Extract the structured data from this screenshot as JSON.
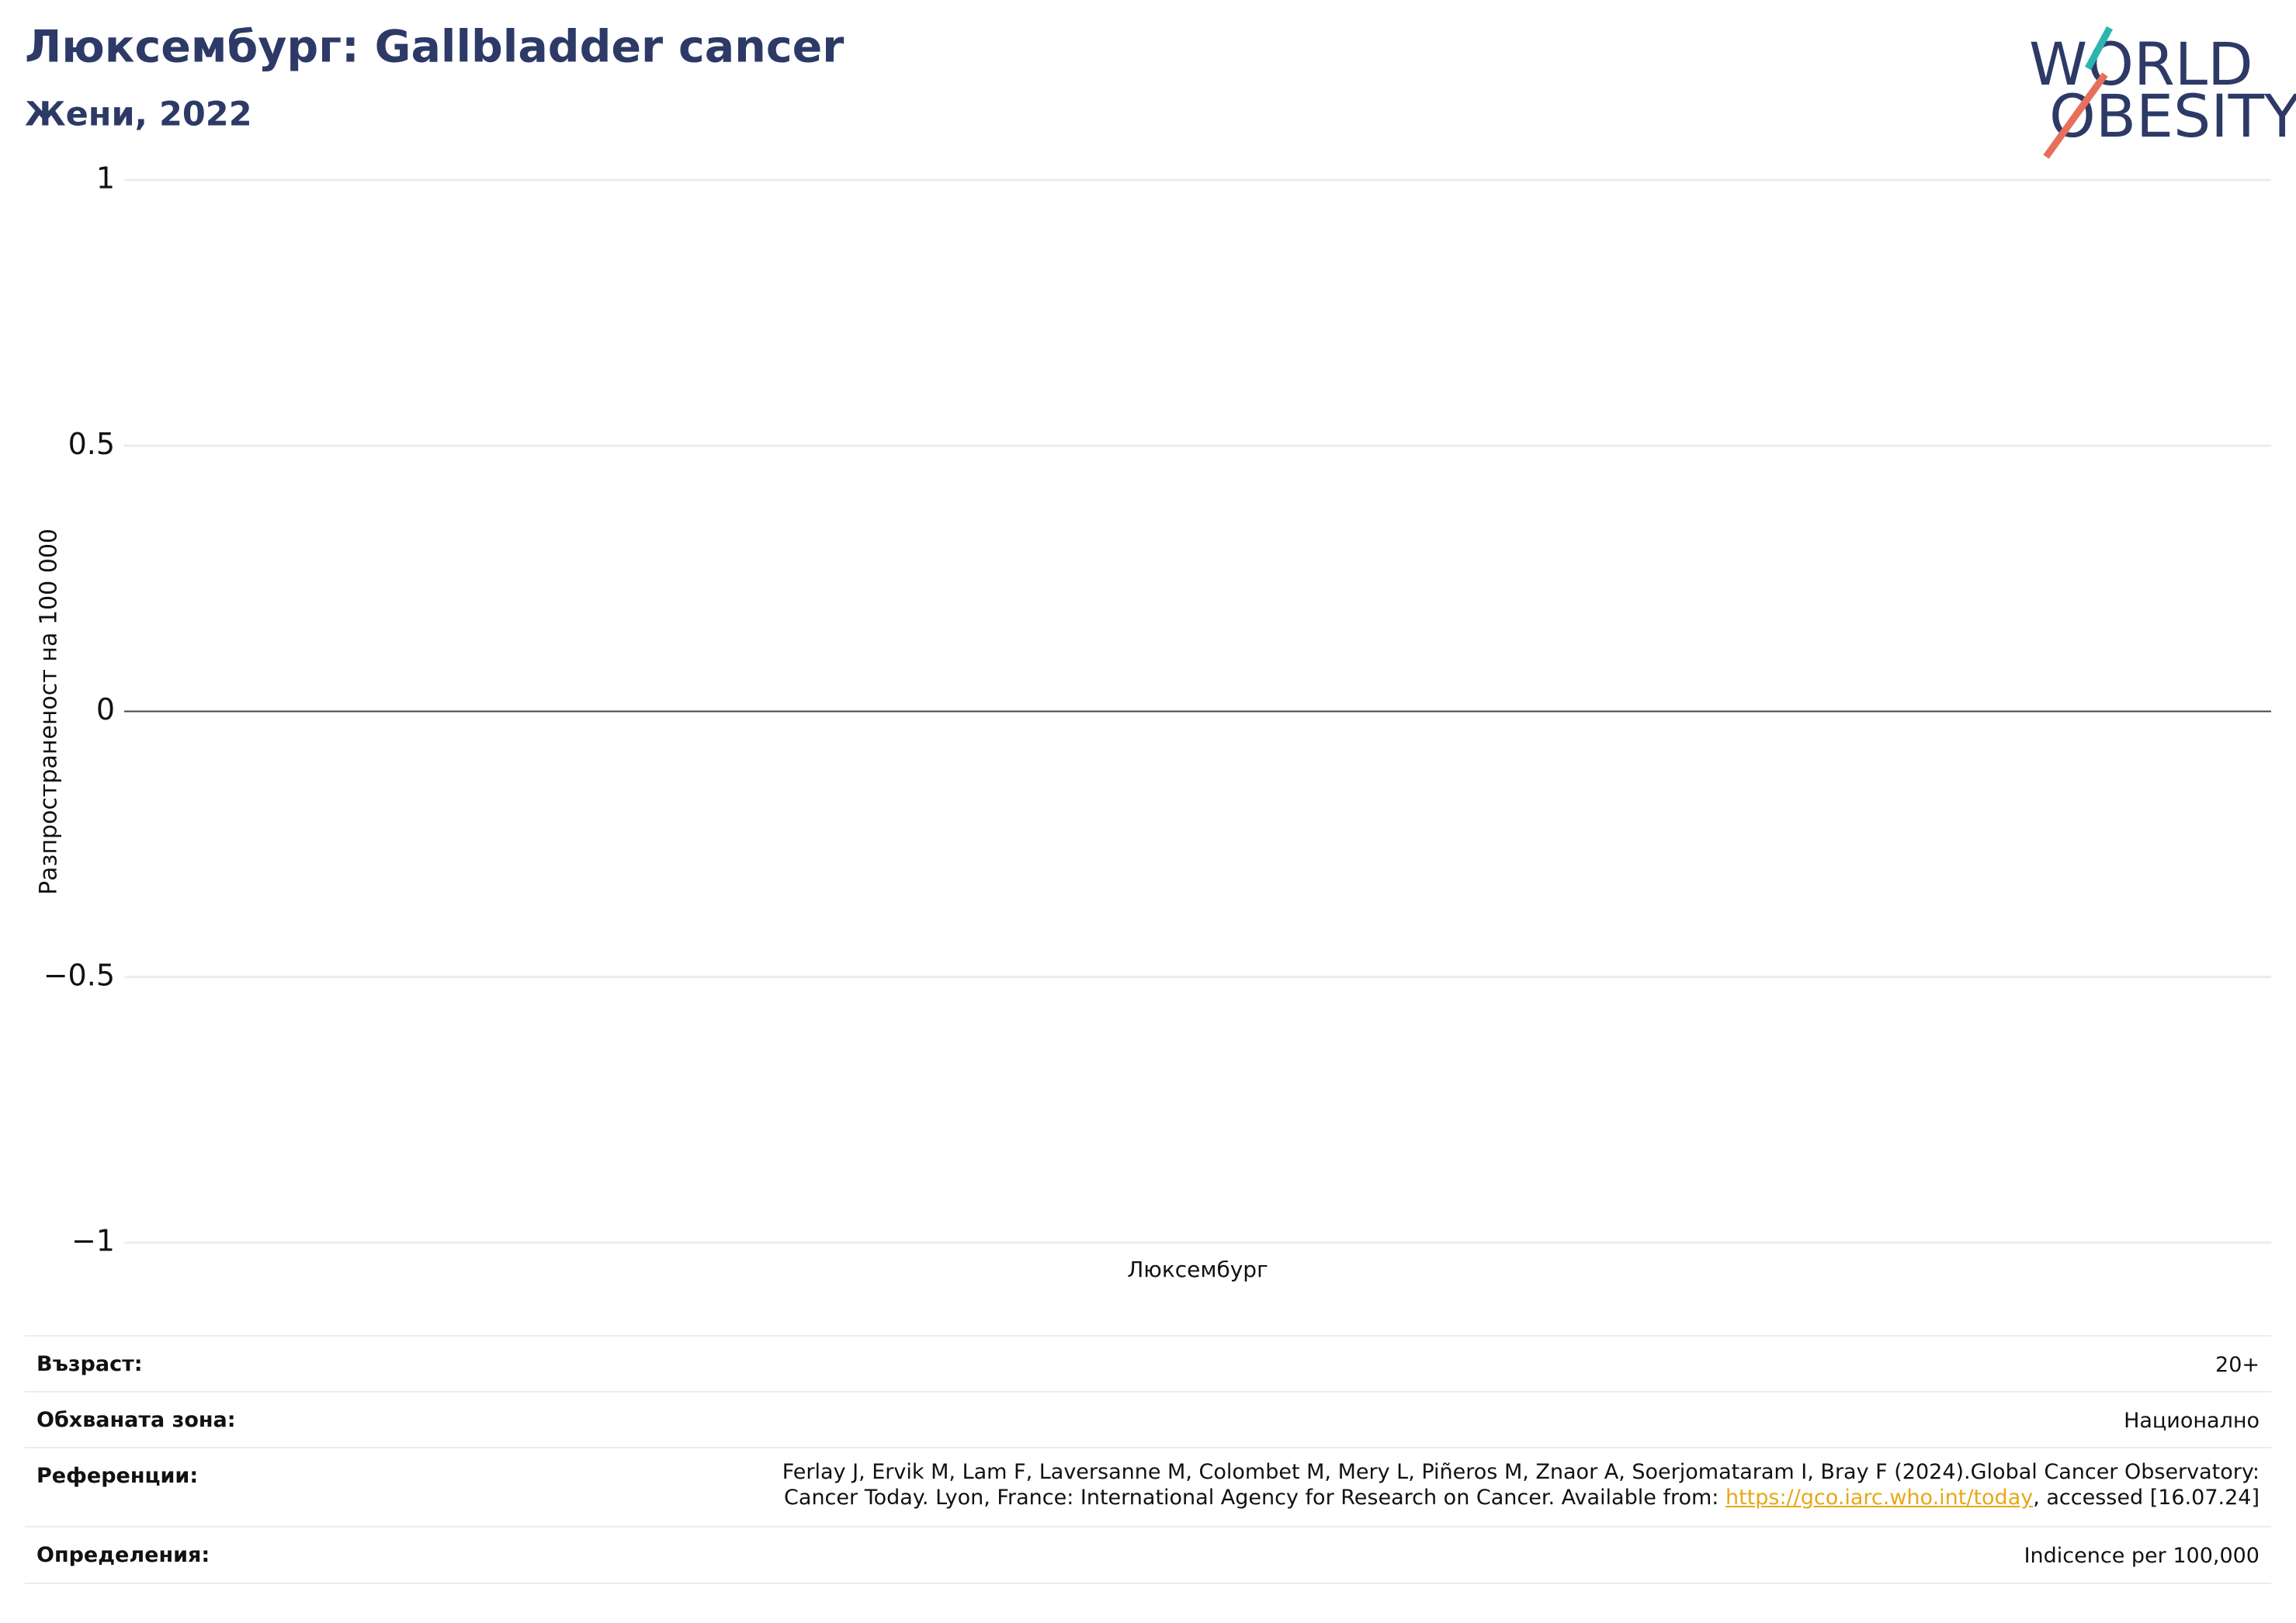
{
  "chart_data": {
    "type": "bar",
    "title": "Люксембург: Gallbladder cancer",
    "subtitle": "Жени, 2022",
    "y_label": "Разпространеност  на 100 000",
    "categories": [
      "Люксембург"
    ],
    "values": [
      0
    ],
    "color": "#2d3a67",
    "ylim": [
      -1,
      1
    ],
    "yticks": [
      {
        "value": -1,
        "label": "−1"
      },
      {
        "value": -0.5,
        "label": "−0.5"
      },
      0,
      0.5,
      1
    ],
    "grid": true
  },
  "logo": {
    "line1": "WORLD",
    "line2": "OBESITY"
  },
  "table": {
    "rows": [
      {
        "label": "Възраст:",
        "value": "20+"
      },
      {
        "label": "Обхваната зона:",
        "value": "Национално"
      },
      {
        "label": "Референции:",
        "line1": "Ferlay J, Ervik M, Lam F, Laversanne M, Colombet M, Mery L, Piñeros M, Znaor A, Soerjomataram I, Bray F (2024).Global Cancer Observatory:",
        "line2": "Cancer Today. Lyon, France: International Agency for Research on Cancer. Available from: ",
        "link": "https://gco.iarc.who.int/today",
        "after": ", accessed [16.07.24]"
      },
      {
        "label": "Определения:",
        "value": "Indicence per 100,000"
      }
    ]
  }
}
